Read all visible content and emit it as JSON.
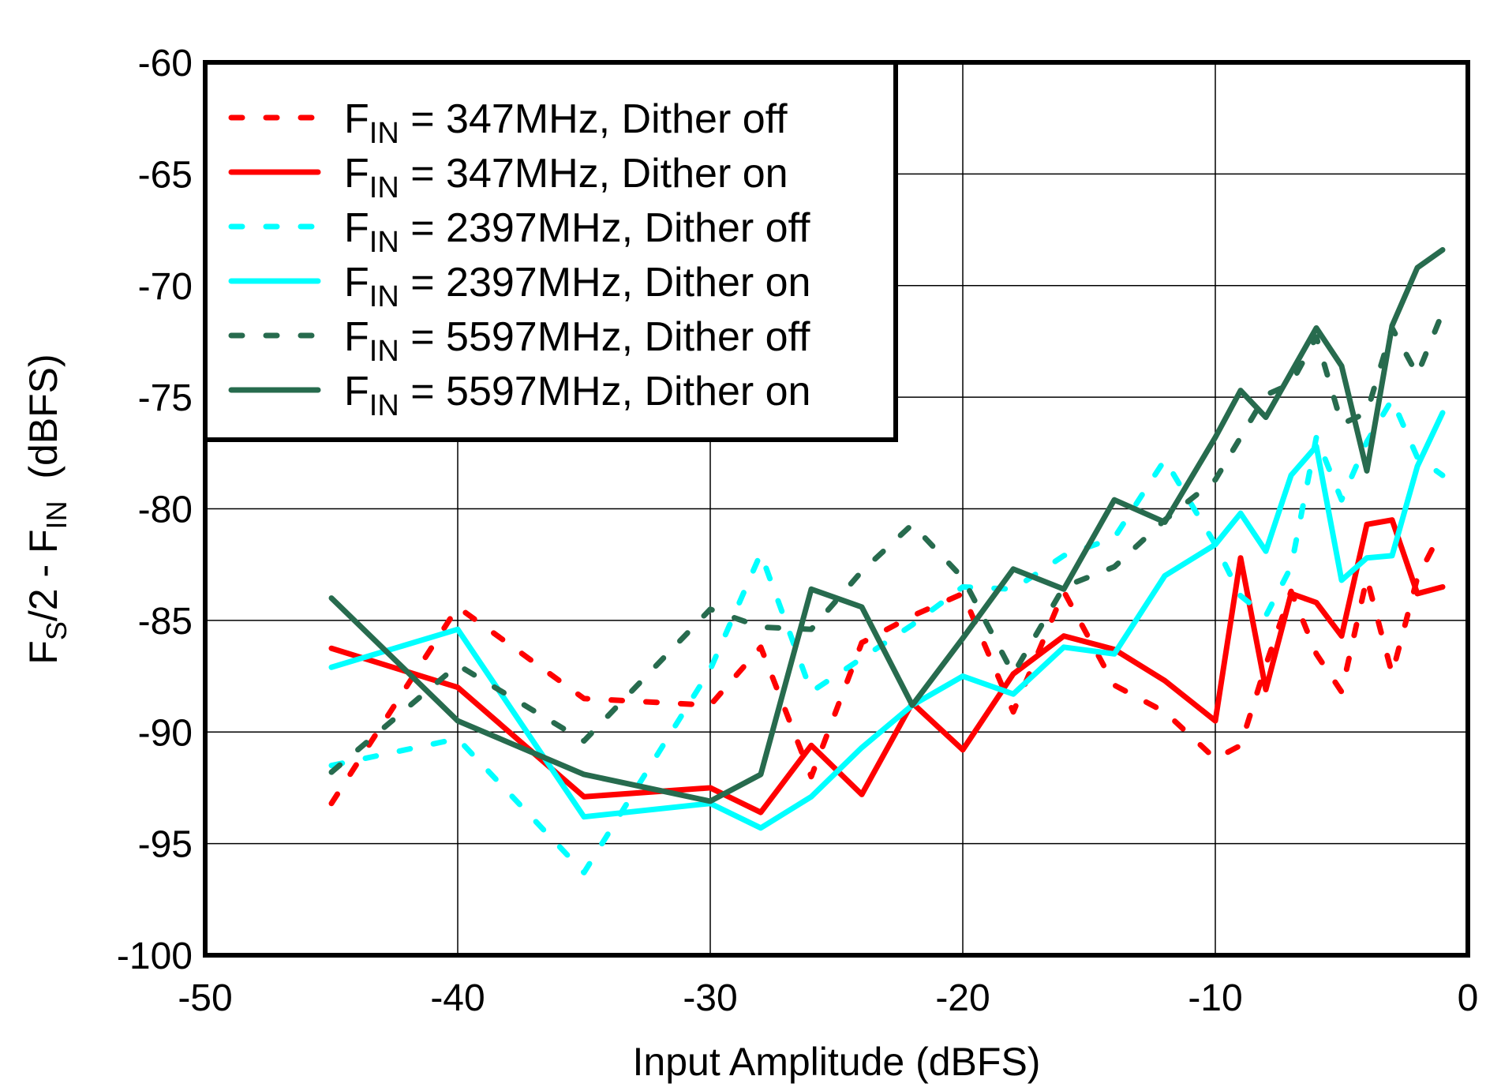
{
  "chart_data": {
    "type": "line",
    "xlabel": "Input Amplitude  (dBFS)",
    "ylabel": {
      "p1": "F",
      "s1": "S",
      "p2": "/2 - F",
      "s2": "IN",
      "p3": "  (dBFS)"
    },
    "xlim": [
      -50,
      0
    ],
    "ylim": [
      -100,
      -60
    ],
    "xticks": [
      -50,
      -40,
      -30,
      -20,
      -10,
      0
    ],
    "yticks": [
      -60,
      -65,
      -70,
      -75,
      -80,
      -85,
      -90,
      -95,
      -100
    ],
    "grid": true,
    "legend_position": "top-left",
    "x": [
      -45,
      -40,
      -35,
      -30,
      -28,
      -26,
      -24,
      -22,
      -20,
      -18,
      -16,
      -14,
      -12,
      -10,
      -9,
      -8,
      -7,
      -6,
      -5,
      -4,
      -3,
      -2,
      -1
    ],
    "series": [
      {
        "label": {
          "main": "F",
          "sub": "IN",
          "rest": " = 347MHz,  Dither off"
        },
        "color": "#ff0000",
        "dashed": true,
        "values": [
          -93.2,
          -84.4,
          -88.5,
          -88.8,
          -86.2,
          -92.0,
          -86.0,
          -84.8,
          -83.8,
          -89.1,
          -83.7,
          -87.9,
          -89.1,
          -91.2,
          -90.6,
          -87.0,
          -83.7,
          -86.5,
          -88.2,
          -83.1,
          -87.4,
          -83.1,
          -80.9
        ]
      },
      {
        "label": {
          "main": "F",
          "sub": "IN",
          "rest": " = 347MHz,  Dither on"
        },
        "color": "#ff0000",
        "dashed": false,
        "values": [
          -86.25,
          -88.0,
          -92.9,
          -92.5,
          -93.6,
          -90.6,
          -92.8,
          -88.7,
          -90.8,
          -87.4,
          -85.7,
          -86.3,
          -87.7,
          -89.5,
          -82.2,
          -88.1,
          -83.8,
          -84.2,
          -85.7,
          -80.7,
          -80.5,
          -83.8,
          -83.5
        ]
      },
      {
        "label": {
          "main": "F",
          "sub": "IN",
          "rest": " = 2397MHz,  Dither off"
        },
        "color": "#00ffff",
        "dashed": true,
        "values": [
          -91.5,
          -90.3,
          -96.3,
          -87.2,
          -82.0,
          -88.2,
          -86.7,
          -85.2,
          -83.5,
          -83.6,
          -82.1,
          -81.3,
          -77.8,
          -81.6,
          -83.9,
          -84.8,
          -82.6,
          -76.8,
          -79.6,
          -77.0,
          -75.1,
          -77.7,
          -78.5
        ]
      },
      {
        "label": {
          "main": "F",
          "sub": "IN",
          "rest": " = 2397MHz,  Dither on"
        },
        "color": "#00ffff",
        "dashed": false,
        "values": [
          -87.1,
          -85.4,
          -93.8,
          -93.2,
          -94.3,
          -92.9,
          -90.7,
          -88.8,
          -87.5,
          -88.3,
          -86.2,
          -86.5,
          -83.0,
          -81.6,
          -80.2,
          -81.9,
          -78.5,
          -77.2,
          -83.2,
          -82.2,
          -82.1,
          -78.1,
          -75.7
        ]
      },
      {
        "label": {
          "main": "F",
          "sub": "IN",
          "rest": " = 5597MHz,  Dither off"
        },
        "color": "#276b4e",
        "dashed": true,
        "values": [
          -91.8,
          -87.0,
          -90.4,
          -84.5,
          -85.3,
          -85.4,
          -82.8,
          -80.7,
          -83.1,
          -87.4,
          -83.5,
          -82.6,
          -80.5,
          -78.7,
          -76.8,
          -74.9,
          -74.4,
          -72.3,
          -76.2,
          -75.7,
          -71.9,
          -74.0,
          -71.2
        ]
      },
      {
        "label": {
          "main": "F",
          "sub": "IN",
          "rest": " = 5597MHz,  Dither on"
        },
        "color": "#276b4e",
        "dashed": false,
        "values": [
          -84.0,
          -89.5,
          -91.9,
          -93.1,
          -91.9,
          -83.6,
          -84.4,
          -88.8,
          -85.8,
          -82.7,
          -83.6,
          -79.6,
          -80.6,
          -76.8,
          -74.7,
          -75.9,
          -73.9,
          -71.9,
          -73.6,
          -78.3,
          -71.8,
          -69.2,
          -68.4
        ]
      }
    ]
  }
}
